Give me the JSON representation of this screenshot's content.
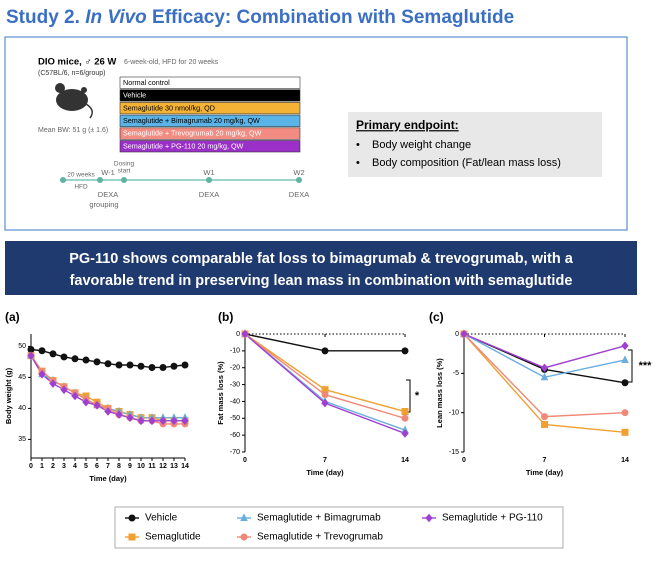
{
  "header": {
    "title_parts": [
      "Study 2. ",
      "In Vivo",
      " Efficacy: Combination with Semaglutide"
    ]
  },
  "design": {
    "model": "DIO mice, ♂ 26 W",
    "model_note": "6-week-old, HFD for 20 weeks",
    "strain": "(C57BL/6, n=6/group)",
    "mean_bw": "Mean BW: 51 g (± 1.6)",
    "groups": [
      {
        "label": "Normal control",
        "color": "#ffffff",
        "text_color": "#000000"
      },
      {
        "label": "Vehicle",
        "color": "#000000",
        "text_color": "#ffffff"
      },
      {
        "label": "Semaglutide 30 nmol/kg, QD",
        "color": "#f5b335",
        "text_color": "#000000"
      },
      {
        "label": "Semaglutide + Bimagrumab 20 mg/kg, QW",
        "color": "#5ab4e8",
        "text_color": "#000000"
      },
      {
        "label": "Semaglutide + Trevogrumab 20 mg/kg, QW",
        "color": "#f28b82",
        "text_color": "#ffffff"
      },
      {
        "label": "Semaglutide + PG-110 20 mg/kg, QW",
        "color": "#9b30c8",
        "text_color": "#ffffff"
      }
    ],
    "endpoint": {
      "title": "Primary endpoint:",
      "items": [
        "Body weight change",
        "Body composition (Fat/lean mass loss)"
      ]
    },
    "timeline": {
      "labels": [
        "20 weeks",
        "HFD",
        "Dosing",
        "start",
        "W-1",
        "DEXA",
        "grouping",
        "W1",
        "DEXA",
        "W2",
        "DEXA"
      ]
    }
  },
  "banner": {
    "lines": [
      "PG-110 shows comparable fat loss to bimagrumab & trevogrumab, with a",
      "favorable trend in preserving lean mass in combination with semaglutide"
    ]
  },
  "chart_data": [
    {
      "type": "line",
      "panel": "(a)",
      "y_label": "Body weight (g)",
      "x_label": "Time (day)",
      "x": [
        0,
        1,
        2,
        3,
        4,
        5,
        6,
        7,
        8,
        9,
        10,
        11,
        12,
        13,
        14
      ],
      "xlim": [
        0,
        14
      ],
      "xticks": [
        0,
        1,
        2,
        3,
        4,
        5,
        6,
        7,
        8,
        9,
        10,
        11,
        12,
        13,
        14
      ],
      "ylim": [
        32,
        52
      ],
      "yticks": [
        35,
        40,
        45,
        50
      ],
      "legend": "bottom",
      "series": [
        {
          "name": "Vehicle",
          "color": "#111111",
          "marker": "circle",
          "values": [
            49.5,
            49.3,
            48.8,
            48.3,
            48,
            47.8,
            47.5,
            47.2,
            47,
            47,
            46.8,
            46.6,
            46.6,
            46.8,
            47
          ]
        },
        {
          "name": "Semaglutide",
          "color": "#f0a030",
          "marker": "square",
          "values": [
            48.5,
            46,
            44.5,
            43.5,
            42.5,
            42,
            41,
            40,
            39.5,
            39,
            38.5,
            38.5,
            38,
            38,
            38
          ]
        },
        {
          "name": "Semaglutide + Bimagrumab",
          "color": "#6aaee0",
          "marker": "triangle",
          "values": [
            48.5,
            45.5,
            44.5,
            43.5,
            42.5,
            41.5,
            40.5,
            40,
            39.5,
            39,
            38.5,
            38.5,
            38.5,
            38.5,
            38.5
          ]
        },
        {
          "name": "Semaglutide + Trevogrumab",
          "color": "#f08878",
          "marker": "circle",
          "values": [
            48.5,
            46,
            44.5,
            43.5,
            42.5,
            41.5,
            40.5,
            40,
            39,
            38.5,
            38,
            38,
            37.5,
            37.5,
            37.5
          ]
        },
        {
          "name": "Semaglutide + PG-110",
          "color": "#a040d0",
          "marker": "diamond",
          "values": [
            48.5,
            45.5,
            44,
            43,
            42,
            41,
            40.5,
            39.5,
            39,
            38.5,
            38,
            38,
            38,
            38,
            38
          ]
        }
      ]
    },
    {
      "type": "line",
      "panel": "(b)",
      "y_label": "Fat mass loss (%)",
      "x_label": "Time (day)",
      "x": [
        0,
        7,
        14
      ],
      "xlim": [
        0,
        14
      ],
      "xticks": [
        0,
        7,
        14
      ],
      "ylim": [
        -70,
        0
      ],
      "yticks": [
        0,
        -10,
        -20,
        -30,
        -40,
        -50,
        -60,
        -70
      ],
      "annotation": "*",
      "series": [
        {
          "color": "#111111",
          "marker": "circle",
          "values": [
            0,
            -10,
            -10
          ]
        },
        {
          "color": "#f0a030",
          "marker": "square",
          "values": [
            0,
            -33,
            -46
          ]
        },
        {
          "color": "#6aaee0",
          "marker": "triangle",
          "values": [
            0,
            -40,
            -57
          ]
        },
        {
          "color": "#f08878",
          "marker": "circle",
          "values": [
            0,
            -36,
            -50
          ]
        },
        {
          "color": "#a040d0",
          "marker": "diamond",
          "values": [
            0,
            -41,
            -59
          ]
        }
      ]
    },
    {
      "type": "line",
      "panel": "(c)",
      "y_label": "Lean mass loss (%)",
      "x_label": "Time (day)",
      "x": [
        0,
        7,
        14
      ],
      "xlim": [
        0,
        14
      ],
      "xticks": [
        0,
        7,
        14
      ],
      "ylim": [
        -15,
        0
      ],
      "yticks": [
        0,
        -5,
        -10,
        -15
      ],
      "annotation": "***",
      "series": [
        {
          "color": "#111111",
          "marker": "circle",
          "values": [
            0,
            -4.5,
            -6.2
          ]
        },
        {
          "color": "#f0a030",
          "marker": "square",
          "values": [
            0,
            -11.5,
            -12.5
          ]
        },
        {
          "color": "#6aaee0",
          "marker": "triangle",
          "values": [
            0,
            -5.5,
            -3.3
          ]
        },
        {
          "color": "#f08878",
          "marker": "circle",
          "values": [
            0,
            -10.5,
            -10
          ]
        },
        {
          "color": "#a040d0",
          "marker": "diamond",
          "values": [
            0,
            -4.3,
            -1.5
          ]
        }
      ]
    }
  ]
}
